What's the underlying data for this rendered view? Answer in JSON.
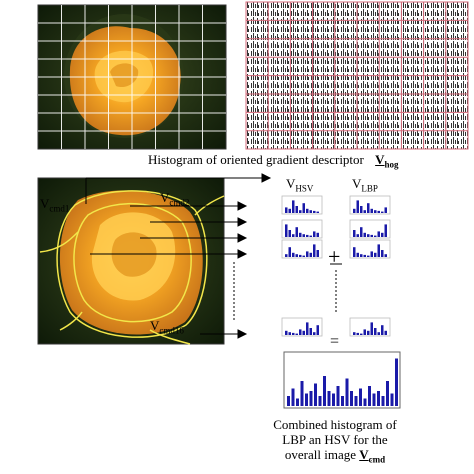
{
  "hog": {
    "caption": "Histogram of oriented gradient descriptor",
    "v_main": "V",
    "v_sub": "hog"
  },
  "region_labels": [
    {
      "main": "V",
      "sub": "cmd1"
    },
    {
      "main": "V",
      "sub": "cmd2"
    },
    {
      "main": "V",
      "sub": "cmd16"
    }
  ],
  "columns": [
    {
      "main": "V",
      "sub": "HSV"
    },
    {
      "main": "V",
      "sub": "LBP"
    }
  ],
  "plus_symbol": "+",
  "equals_symbol": "=",
  "combined": {
    "line1": "Combined histogram of",
    "line2": "LBP an HSV for the",
    "line3": "overall image",
    "v_main": "V",
    "v_sub": "cmd"
  },
  "colors": {
    "histogram_blue": "#1a1aa8",
    "grid_pink": "#d46a7a",
    "contour_yellow": "#f2e64a",
    "rose_orange": "#f0a020"
  }
}
